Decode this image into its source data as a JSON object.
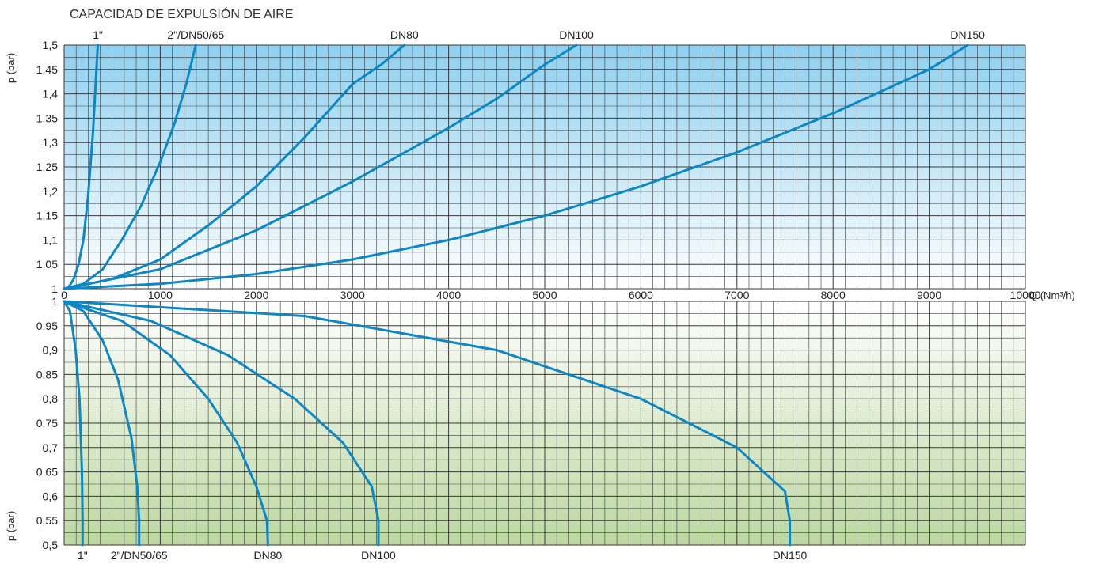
{
  "chart_data": [
    {
      "type": "line",
      "title": "CAPACIDAD DE EXPULSIÓN DE AIRE",
      "ylabel": "p (bar)",
      "xlabel": "Q (Nm³/h)",
      "xlim": [
        0,
        10000
      ],
      "ylim": [
        1,
        1.5
      ],
      "x_ticks": [
        "0",
        "1000",
        "2000",
        "3000",
        "4000",
        "5000",
        "6000",
        "7000",
        "8000",
        "9000",
        "10000"
      ],
      "y_ticks": [
        "1",
        "1,05",
        "1,1",
        "1,15",
        "1,2",
        "1,25",
        "1,3",
        "1,35",
        "1,4",
        "1,45",
        "1,5"
      ],
      "grid": true,
      "background": "gradient light-blue top to white bottom",
      "series": [
        {
          "name": "1\"",
          "x": [
            0,
            50,
            100,
            150,
            200,
            250,
            300,
            350
          ],
          "y": [
            1.0,
            1.004,
            1.02,
            1.05,
            1.1,
            1.19,
            1.32,
            1.5
          ]
        },
        {
          "name": "2\"/DN50/65",
          "x": [
            0,
            200,
            400,
            600,
            800,
            1000,
            1150,
            1270,
            1370
          ],
          "y": [
            1.0,
            1.01,
            1.04,
            1.1,
            1.17,
            1.26,
            1.34,
            1.42,
            1.5
          ]
        },
        {
          "name": "DN80",
          "x": [
            0,
            500,
            1000,
            1500,
            2000,
            2500,
            3000,
            3300,
            3540
          ],
          "y": [
            1.0,
            1.02,
            1.06,
            1.13,
            1.21,
            1.31,
            1.42,
            1.46,
            1.5
          ]
        },
        {
          "name": "DN100",
          "x": [
            0,
            1000,
            2000,
            3000,
            4000,
            4500,
            5000,
            5330
          ],
          "y": [
            1.0,
            1.04,
            1.12,
            1.22,
            1.33,
            1.39,
            1.46,
            1.5
          ]
        },
        {
          "name": "DN150",
          "x": [
            0,
            1000,
            2000,
            3000,
            4000,
            5000,
            6000,
            7000,
            8000,
            9000,
            9400
          ],
          "y": [
            1.0,
            1.01,
            1.03,
            1.06,
            1.1,
            1.15,
            1.21,
            1.28,
            1.36,
            1.45,
            1.5
          ]
        }
      ],
      "series_color": "#0d86c4"
    },
    {
      "type": "line",
      "ylabel": "p (bar)",
      "ylim": [
        0.5,
        1
      ],
      "y_ticks": [
        "0,5",
        "0,55",
        "0,6",
        "0,65",
        "0,7",
        "0,75",
        "0,8",
        "0,85",
        "0,9",
        "0,95",
        "1"
      ],
      "grid": true,
      "background": "gradient white top to light-green bottom",
      "series": [
        {
          "name": "1\"",
          "x": [
            0,
            60,
            120,
            160,
            185,
            192,
            192
          ],
          "y": [
            1.0,
            0.98,
            0.9,
            0.8,
            0.65,
            0.55,
            0.5
          ]
        },
        {
          "name": "2\"/DN50/65",
          "x": [
            0,
            200,
            400,
            560,
            700,
            760,
            780,
            780
          ],
          "y": [
            1.0,
            0.98,
            0.92,
            0.84,
            0.72,
            0.62,
            0.55,
            0.5
          ]
        },
        {
          "name": "DN80",
          "x": [
            0,
            600,
            1100,
            1500,
            1800,
            2000,
            2110,
            2120
          ],
          "y": [
            1.0,
            0.96,
            0.89,
            0.8,
            0.71,
            0.62,
            0.55,
            0.5
          ]
        },
        {
          "name": "DN100",
          "x": [
            0,
            900,
            1700,
            2400,
            2900,
            3200,
            3270,
            3270
          ],
          "y": [
            1.0,
            0.96,
            0.89,
            0.8,
            0.71,
            0.62,
            0.55,
            0.5
          ]
        },
        {
          "name": "DN150",
          "x": [
            0,
            2500,
            4500,
            6000,
            7000,
            7500,
            7550,
            7550
          ],
          "y": [
            1.0,
            0.97,
            0.9,
            0.8,
            0.7,
            0.61,
            0.55,
            0.5
          ]
        }
      ],
      "series_color": "#0d86c4"
    }
  ]
}
